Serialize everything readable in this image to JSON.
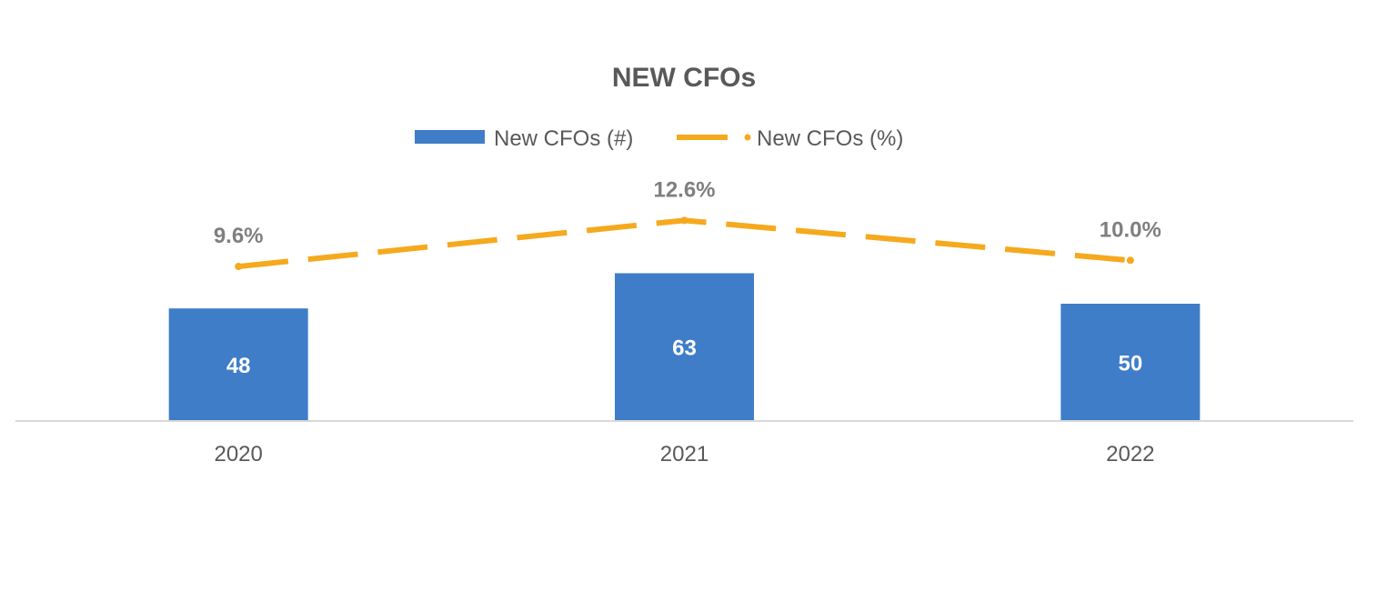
{
  "chart_data": {
    "type": "bar",
    "title": "NEW CFOs",
    "categories": [
      "2020",
      "2021",
      "2022"
    ],
    "series": [
      {
        "name": "New CFOs (#)",
        "type": "bar",
        "values": [
          48,
          63,
          50
        ],
        "value_labels": [
          "48",
          "63",
          "50"
        ],
        "color": "#3F7DC8"
      },
      {
        "name": "New CFOs (%)",
        "type": "line",
        "line_style": "dashed",
        "values": [
          9.6,
          12.6,
          10.0
        ],
        "value_labels": [
          "9.6%",
          "12.6%",
          "10.0%"
        ],
        "color": "#F5A91D"
      }
    ],
    "xlabel": "",
    "ylabel": "",
    "grid": false,
    "legend_position": "top-center",
    "colors": {
      "title": "#595959",
      "axis_text": "#595959",
      "line_label": "#7F7F7F",
      "bar_label": "#FFFFFF",
      "axis_line": "#D9D9D9"
    }
  }
}
